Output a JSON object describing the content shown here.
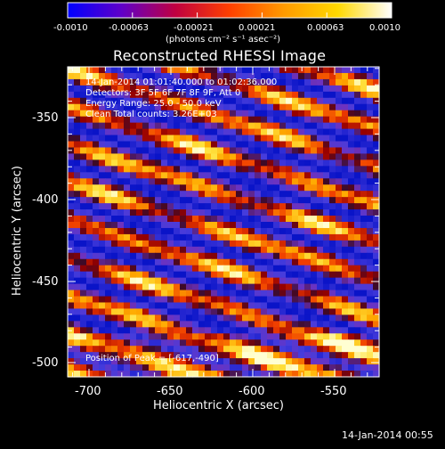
{
  "colorbar": {
    "tick_labels": [
      "-0.0010",
      "-0.00063",
      "-0.00021",
      "0.00021",
      "0.00063",
      "0.0010"
    ],
    "unit_label": "(photons cm⁻² s⁻¹ asec⁻²)",
    "colormap": [
      "#0000ff",
      "#6000c8",
      "#c00040",
      "#ff4000",
      "#ff9a00",
      "#ffd800",
      "#ffffff"
    ]
  },
  "title": "Reconstructed RHESSI Image",
  "info": {
    "time_range": "14-Jan-2014 01:01:40.000 to 01:02:36.000",
    "detectors": "Detectors: 3F 5F 6F 7F 8F 9F, Att 0",
    "energy_range": "Energy Range: 25.0 - 50.0 keV",
    "clean_counts": "Clean    Total counts: 3.26E+03",
    "peak_position": "Position of Peak = [-617,-490]"
  },
  "axes": {
    "x_title": "Heliocentric X (arcsec)",
    "y_title": "Heliocentric Y (arcsec)",
    "x_ticks": [
      "-700",
      "-650",
      "-600",
      "-550"
    ],
    "y_ticks": [
      "-350",
      "-400",
      "-450",
      "-500"
    ]
  },
  "footer_timestamp": "14-Jan-2014 00:55",
  "palette": {
    "background": "#000000",
    "axes": "#ffffff",
    "text": "#ffffff"
  }
}
